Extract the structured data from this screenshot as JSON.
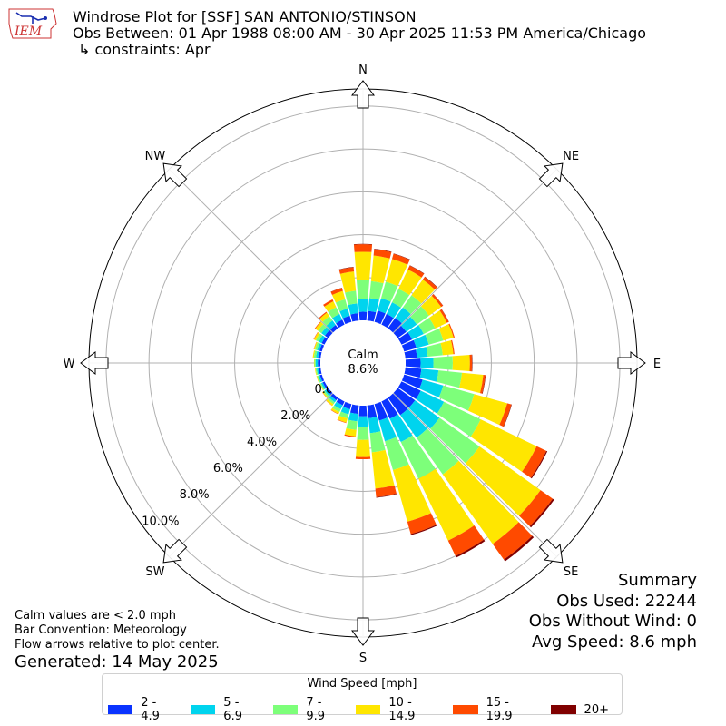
{
  "header": {
    "title": "Windrose Plot for [SSF] SAN ANTONIO/STINSON",
    "obs_range": "Obs Between: 01 Apr 1988 08:00 AM - 30 Apr 2025 11:53 PM America/Chicago",
    "constraints": "↳ constraints: Apr",
    "logo_text": "IEM"
  },
  "summary": {
    "heading": "Summary",
    "obs_used": "Obs Used: 22244",
    "obs_without_wind": "Obs Without Wind: 0",
    "avg_speed": "Avg Speed: 8.6 mph"
  },
  "notes": {
    "calm_note": "Calm values are < 2.0 mph",
    "bar_convention": "Bar Convention: Meteorology",
    "flow_arrows": "Flow arrows relative to plot center.",
    "generated": "Generated: 14 May 2025"
  },
  "chart_data": {
    "type": "windrose",
    "calm_label": "Calm",
    "calm_value": "8.6%",
    "radial_ticks": [
      "0.0%",
      "2.0%",
      "4.0%",
      "6.0%",
      "8.0%",
      "10.0%"
    ],
    "radial_values": [
      0,
      2,
      4,
      6,
      8,
      10
    ],
    "compass_labels": [
      "N",
      "NE",
      "E",
      "SE",
      "S",
      "SW",
      "W",
      "NW"
    ],
    "legend_title": "Wind Speed [mph]",
    "speed_bins": [
      "2 - 4.9",
      "5 - 6.9",
      "7 - 9.9",
      "10 - 14.9",
      "15 - 19.9",
      "20+"
    ],
    "bin_colors": [
      "#0a33ff",
      "#00d4ee",
      "#7dff7a",
      "#ffe600",
      "#ff4a00",
      "#800000"
    ],
    "directions": [
      0,
      10,
      20,
      30,
      40,
      50,
      60,
      70,
      80,
      90,
      100,
      110,
      120,
      130,
      140,
      150,
      160,
      170,
      180,
      190,
      200,
      210,
      220,
      230,
      240,
      250,
      260,
      270,
      280,
      290,
      300,
      310,
      320,
      330,
      340,
      350
    ],
    "series": [
      {
        "name": "2 - 4.9",
        "values": [
          0.4,
          0.45,
          0.55,
          0.55,
          0.6,
          0.5,
          0.55,
          0.6,
          0.55,
          0.7,
          0.75,
          0.9,
          1.0,
          1.0,
          1.0,
          0.9,
          0.8,
          0.6,
          0.5,
          0.4,
          0.25,
          0.2,
          0.15,
          0.12,
          0.1,
          0.1,
          0.1,
          0.12,
          0.12,
          0.12,
          0.15,
          0.2,
          0.2,
          0.25,
          0.3,
          0.35
        ]
      },
      {
        "name": "5 - 6.9",
        "values": [
          0.6,
          0.6,
          0.6,
          0.6,
          0.6,
          0.6,
          0.6,
          0.6,
          0.5,
          0.6,
          0.8,
          1.0,
          1.2,
          1.4,
          1.3,
          1.2,
          1.0,
          0.7,
          0.5,
          0.35,
          0.25,
          0.2,
          0.12,
          0.1,
          0.08,
          0.08,
          0.08,
          0.1,
          0.1,
          0.12,
          0.15,
          0.2,
          0.25,
          0.3,
          0.35,
          0.45
        ]
      },
      {
        "name": "7 - 9.9",
        "values": [
          0.9,
          0.8,
          0.8,
          0.7,
          0.7,
          0.7,
          0.6,
          0.7,
          0.7,
          0.9,
          1.1,
          1.5,
          1.9,
          2.3,
          2.1,
          1.9,
          1.4,
          0.9,
          0.6,
          0.4,
          0.2,
          0.15,
          0.1,
          0.08,
          0.06,
          0.06,
          0.06,
          0.06,
          0.1,
          0.1,
          0.15,
          0.2,
          0.25,
          0.35,
          0.45,
          0.6
        ]
      },
      {
        "name": "10 - 14.9",
        "values": [
          1.3,
          1.2,
          1.1,
          1.0,
          0.9,
          0.7,
          0.6,
          0.5,
          0.5,
          0.8,
          1.0,
          1.6,
          2.9,
          3.5,
          4.0,
          3.2,
          2.5,
          1.7,
          0.8,
          0.3,
          0.2,
          0.1,
          0.1,
          0.05,
          0.03,
          0.03,
          0.03,
          0.02,
          0.05,
          0.05,
          0.1,
          0.15,
          0.2,
          0.3,
          0.4,
          0.9
        ]
      },
      {
        "name": "15 - 19.9",
        "values": [
          0.35,
          0.3,
          0.25,
          0.2,
          0.15,
          0.1,
          0.1,
          0.05,
          0.05,
          0.1,
          0.1,
          0.2,
          0.5,
          0.7,
          0.9,
          0.8,
          0.6,
          0.4,
          0.1,
          0.05,
          0.02,
          0.02,
          0.01,
          0.01,
          0.0,
          0.0,
          0.0,
          0.0,
          0.0,
          0.01,
          0.02,
          0.03,
          0.05,
          0.1,
          0.15,
          0.2
        ]
      },
      {
        "name": "20+",
        "values": [
          0.02,
          0.02,
          0.02,
          0.02,
          0.02,
          0.01,
          0.01,
          0.0,
          0.0,
          0.02,
          0.02,
          0.02,
          0.05,
          0.08,
          0.1,
          0.08,
          0.05,
          0.03,
          0.0,
          0.0,
          0.0,
          0.0,
          0.0,
          0.0,
          0.0,
          0.0,
          0.0,
          0.0,
          0.0,
          0.0,
          0.0,
          0.0,
          0.0,
          0.0,
          0.01,
          0.02
        ]
      }
    ]
  }
}
